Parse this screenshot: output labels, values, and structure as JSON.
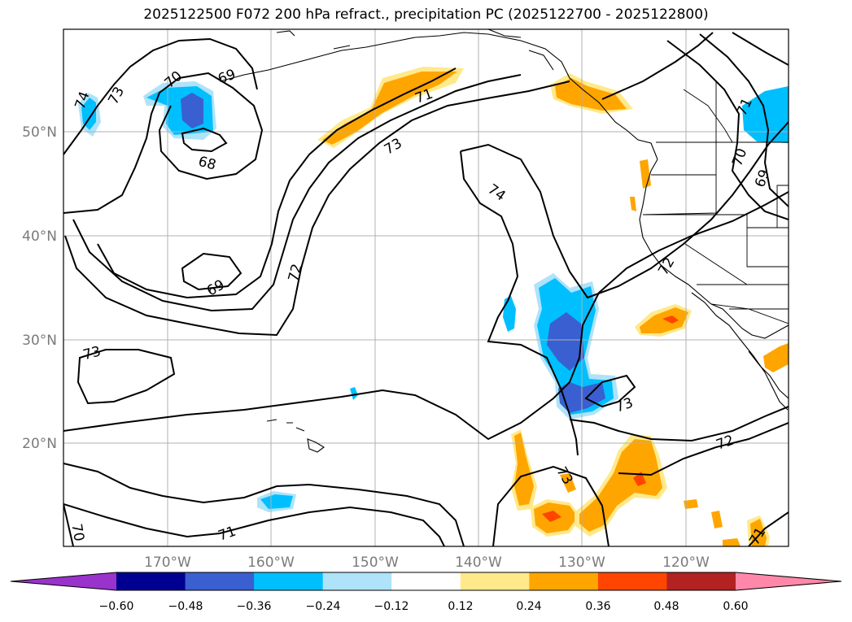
{
  "title": "2025122500 F072 200 hPa refract., precipitation PC (2025122700 - 2025122800)",
  "lat_labels": [
    "50°N",
    "40°N",
    "30°N",
    "20°N"
  ],
  "lon_labels": [
    "170°W",
    "160°W",
    "150°W",
    "140°W",
    "130°W",
    "120°W"
  ],
  "contour_labels": [
    "74",
    "73",
    "70",
    "69",
    "68",
    "71",
    "73",
    "74",
    "69",
    "72",
    "73",
    "71",
    "70",
    "69",
    "72",
    "73",
    "72",
    "71",
    "70",
    "73",
    "71"
  ],
  "colorbar": {
    "ticks": [
      "−0.60",
      "−0.48",
      "−0.36",
      "−0.24",
      "−0.12",
      "0.12",
      "0.24",
      "0.36",
      "0.48",
      "0.60"
    ],
    "colors": [
      "#9933cc",
      "#000090",
      "#3a5fd0",
      "#00bfff",
      "#aee3fa",
      "#ffffff",
      "#ffe98a",
      "#ffa500",
      "#ff4500",
      "#b22222",
      "#ff88aa"
    ]
  },
  "fill_colors": {
    "light_blue": "#aee3fa",
    "cyan": "#00bfff",
    "royal_blue": "#3a5fd0",
    "light_yellow": "#ffe98a",
    "orange": "#ffa500",
    "red_orange": "#ff4500"
  }
}
